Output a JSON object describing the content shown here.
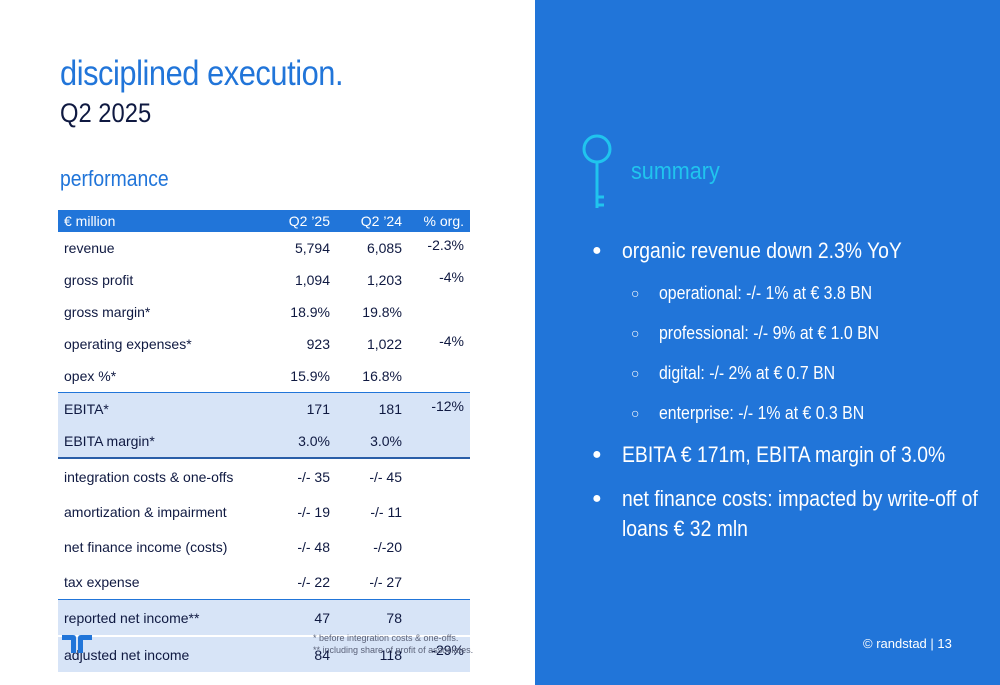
{
  "colors": {
    "brand_blue": "#2175d9",
    "navy": "#0f1941",
    "highlight_row": "#d7e4f7",
    "accent_cyan": "#20c4ee"
  },
  "title": "disciplined execution.",
  "subtitle": "Q2 2025",
  "section_label": "performance",
  "table": {
    "headers": [
      "€ million",
      "Q2 ’25",
      "Q2 ’24",
      "% org."
    ],
    "rows": [
      [
        "revenue",
        "5,794",
        "6,085",
        "-2.3%"
      ],
      [
        "gross profit",
        "1,094",
        "1,203",
        "-4%"
      ],
      [
        "gross margin*",
        "18.9%",
        "19.8%",
        ""
      ],
      [
        "operating expenses*",
        "923",
        "1,022",
        "-4%"
      ],
      [
        "opex %*",
        "15.9%",
        "16.8%",
        ""
      ],
      [
        "EBITA*",
        "171",
        "181",
        "-12%"
      ],
      [
        "EBITA margin*",
        "3.0%",
        "3.0%",
        ""
      ],
      [
        "integration costs & one-offs",
        "-/- 35",
        "-/- 45",
        ""
      ],
      [
        "amortization & impairment",
        "-/- 19",
        "-/- 11",
        ""
      ],
      [
        "net finance income (costs)",
        "-/- 48",
        "-/-20",
        ""
      ],
      [
        "tax expense",
        "-/- 22",
        "-/- 27",
        ""
      ],
      [
        "reported net income**",
        "47",
        "78",
        ""
      ],
      [
        "adjusted net income",
        "84",
        "118",
        "-29%"
      ]
    ]
  },
  "footnotes": [
    "*   before integration costs & one-offs.",
    "**  including share of profit of associates."
  ],
  "icons": {
    "logo": "randstad-logo",
    "key": "key-icon"
  },
  "summary": {
    "title": "summary",
    "bullet_marker": "●",
    "sub_marker": "○",
    "bullets": [
      "organic revenue down 2.3% YoY",
      "operational: -/- 1% at € 3.8 BN",
      "professional: -/- 9% at € 1.0 BN",
      "digital: -/- 2% at € 0.7 BN",
      "enterprise: -/- 1% at € 0.3 BN",
      "EBITA € 171m, EBITA margin of 3.0%",
      "net finance costs: impacted by write-off of loans € 32 mln"
    ]
  },
  "copyright": "© randstad | 13"
}
